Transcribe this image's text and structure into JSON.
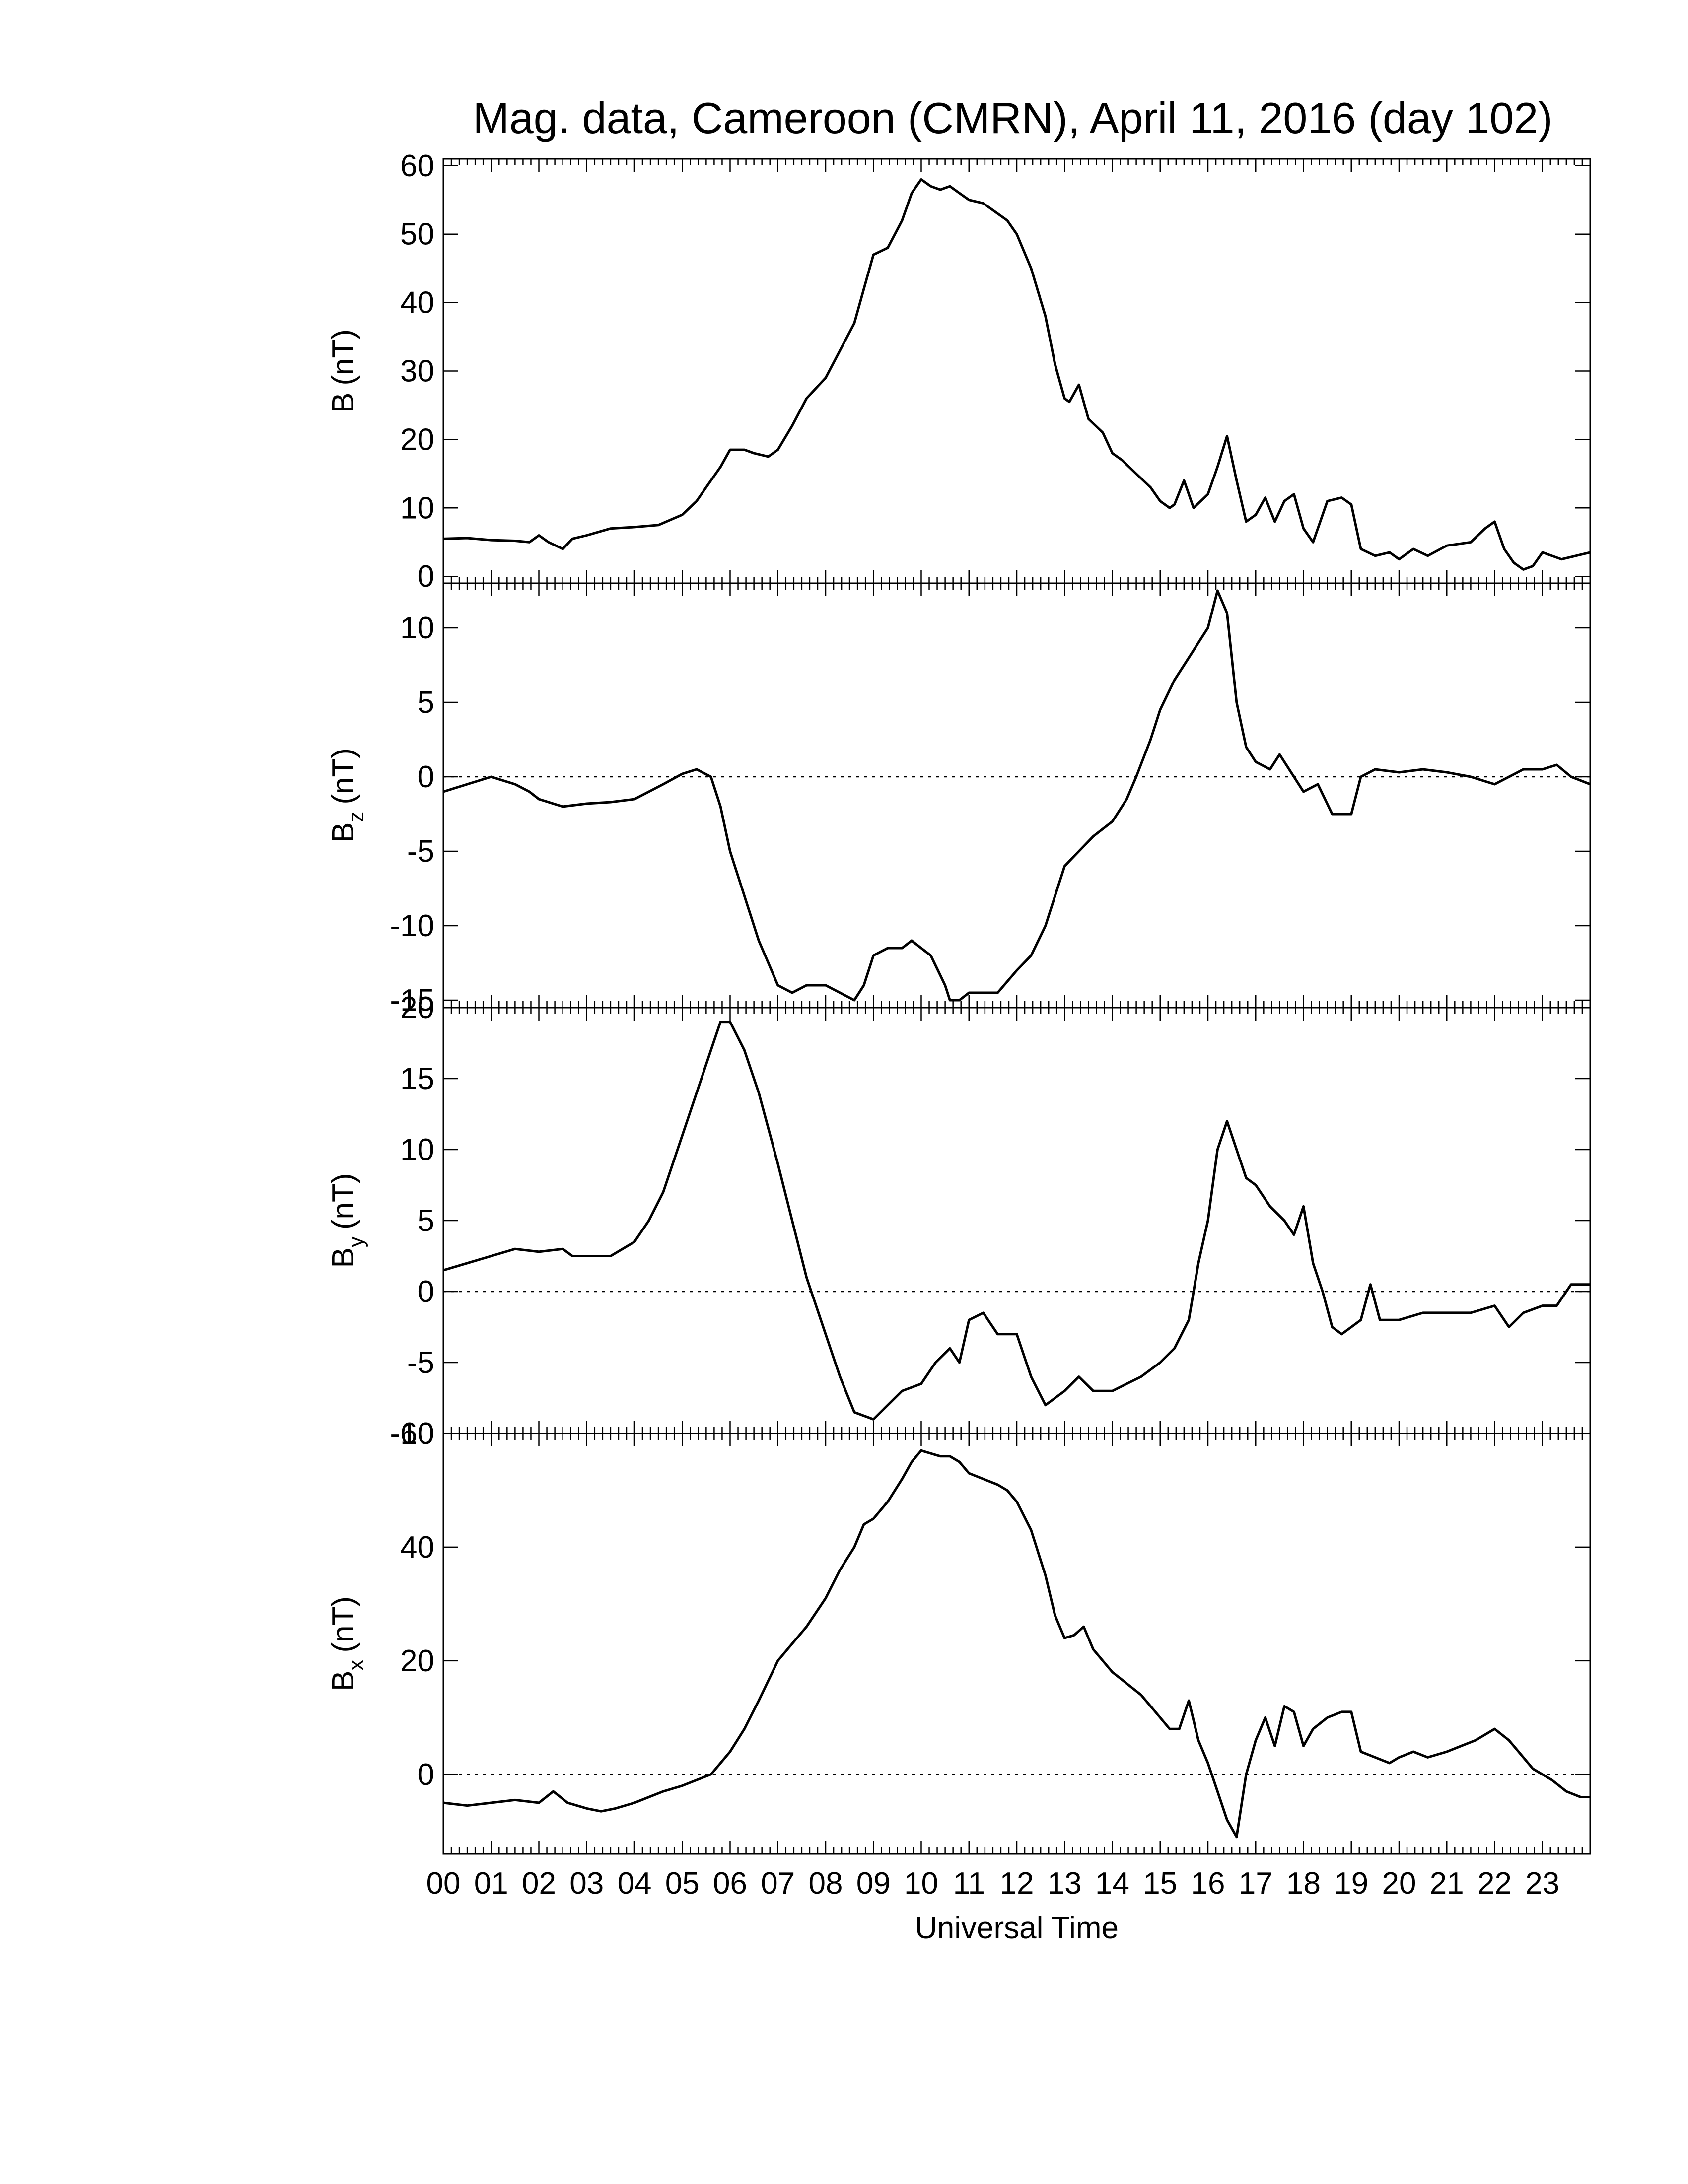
{
  "chart_data": [
    {
      "type": "line",
      "title": "Mag. data, Cameroon (CMRN), April 11, 2016 (day 102)",
      "ylabel": "B (nT)",
      "ylabel_main": "B",
      "ylabel_sub": "",
      "ylabel_unit": "(nT)",
      "xlabel": "",
      "xlim": [
        0,
        24
      ],
      "ylim": [
        -1,
        61
      ],
      "yticks": [
        0,
        10,
        20,
        30,
        40,
        50,
        60
      ],
      "zero_line": false,
      "series": [
        {
          "x": [
            0,
            0.5,
            1,
            1.5,
            1.8,
            2.0,
            2.2,
            2.5,
            2.7,
            3.0,
            3.5,
            4.0,
            4.5,
            5.0,
            5.3,
            5.6,
            5.8,
            6.0,
            6.3,
            6.5,
            6.8,
            7.0,
            7.3,
            7.6,
            8.0,
            8.3,
            8.6,
            8.8,
            9.0,
            9.3,
            9.6,
            9.8,
            10.0,
            10.2,
            10.4,
            10.6,
            10.8,
            11.0,
            11.3,
            11.6,
            11.8,
            12.0,
            12.3,
            12.6,
            12.8,
            13.0,
            13.1,
            13.3,
            13.5,
            13.8,
            14.0,
            14.2,
            14.5,
            14.8,
            15.0,
            15.2,
            15.3,
            15.5,
            15.7,
            16.0,
            16.2,
            16.4,
            16.6,
            16.8,
            17.0,
            17.2,
            17.4,
            17.6,
            17.8,
            18.0,
            18.2,
            18.5,
            18.8,
            19.0,
            19.2,
            19.5,
            19.8,
            20.0,
            20.3,
            20.6,
            21.0,
            21.5,
            21.8,
            22.0,
            22.2,
            22.4,
            22.6,
            22.8,
            23.0,
            23.2,
            23.4,
            23.7,
            24.0
          ],
          "values": [
            5.5,
            5.6,
            5.3,
            5.2,
            5.0,
            6.0,
            5.0,
            4.0,
            5.5,
            6.0,
            7.0,
            7.2,
            7.5,
            9.0,
            11.0,
            14.0,
            16.0,
            18.5,
            18.5,
            18.0,
            17.5,
            18.5,
            22.0,
            26.0,
            29.0,
            33.0,
            37.0,
            42.0,
            47.0,
            48.0,
            52.0,
            56.0,
            58.0,
            57.0,
            56.5,
            57.0,
            56.0,
            55.0,
            54.5,
            53.0,
            52.0,
            50.0,
            45.0,
            38.0,
            31.0,
            26.0,
            25.5,
            28.0,
            23.0,
            21.0,
            18.0,
            17.0,
            15.0,
            13.0,
            11.0,
            10.0,
            10.5,
            14.0,
            10.0,
            12.0,
            16.0,
            20.5,
            14.0,
            8.0,
            9.0,
            11.5,
            8.0,
            11.0,
            12.0,
            7.0,
            5.0,
            11.0,
            11.5,
            10.5,
            4.0,
            3.0,
            3.5,
            2.5,
            4.0,
            3.0,
            4.5,
            5.0,
            7.0,
            8.0,
            4.0,
            2.0,
            1.0,
            1.5,
            3.5,
            3.0,
            2.5,
            3.0,
            3.5
          ]
        }
      ]
    },
    {
      "type": "line",
      "title": "",
      "ylabel": "B z (nT)",
      "ylabel_main": "B",
      "ylabel_sub": "z",
      "ylabel_unit": "(nT)",
      "xlabel": "",
      "xlim": [
        0,
        24
      ],
      "ylim": [
        -15.5,
        13
      ],
      "yticks": [
        -15,
        -10,
        -5,
        0,
        5,
        10
      ],
      "zero_line": true,
      "series": [
        {
          "x": [
            0,
            0.5,
            1,
            1.5,
            1.8,
            2.0,
            2.5,
            3.0,
            3.5,
            4.0,
            4.3,
            4.6,
            5.0,
            5.3,
            5.6,
            5.8,
            6.0,
            6.3,
            6.6,
            7.0,
            7.3,
            7.6,
            8.0,
            8.3,
            8.6,
            8.8,
            9.0,
            9.3,
            9.6,
            9.8,
            10.0,
            10.2,
            10.5,
            10.6,
            10.8,
            11.0,
            11.3,
            11.6,
            12.0,
            12.3,
            12.6,
            13.0,
            13.3,
            13.6,
            14.0,
            14.3,
            14.5,
            14.8,
            15.0,
            15.3,
            15.6,
            16.0,
            16.2,
            16.4,
            16.6,
            16.8,
            17.0,
            17.3,
            17.5,
            17.8,
            18.0,
            18.3,
            18.6,
            19.0,
            19.2,
            19.5,
            20.0,
            20.5,
            21.0,
            21.5,
            22.0,
            22.3,
            22.6,
            23.0,
            23.3,
            23.6,
            24.0
          ],
          "values": [
            -1.0,
            -0.5,
            0,
            -0.5,
            -1.0,
            -1.5,
            -2.0,
            -1.8,
            -1.7,
            -1.5,
            -1.0,
            -0.5,
            0.2,
            0.5,
            0,
            -2.0,
            -5.0,
            -8.0,
            -11.0,
            -14.0,
            -14.5,
            -14.0,
            -14.0,
            -14.5,
            -15.0,
            -14.0,
            -12.0,
            -11.5,
            -11.5,
            -11.0,
            -11.5,
            -12.0,
            -14.0,
            -15.0,
            -15.0,
            -14.5,
            -14.5,
            -14.5,
            -13.0,
            -12.0,
            -10.0,
            -6.0,
            -5.0,
            -4.0,
            -3.0,
            -1.5,
            0,
            2.5,
            4.5,
            6.5,
            8.0,
            10.0,
            12.5,
            11.0,
            5.0,
            2.0,
            1.0,
            0.5,
            1.5,
            0,
            -1.0,
            -0.5,
            -2.5,
            -2.5,
            0,
            0.5,
            0.3,
            0.5,
            0.3,
            0,
            -0.5,
            0,
            0.5,
            0.5,
            0.8,
            0,
            -0.5
          ]
        }
      ]
    },
    {
      "type": "line",
      "title": "",
      "ylabel": "B y (nT)",
      "ylabel_main": "B",
      "ylabel_sub": "y",
      "ylabel_unit": "(nT)",
      "xlabel": "",
      "xlim": [
        0,
        24
      ],
      "ylim": [
        -10,
        20
      ],
      "yticks": [
        -10,
        -5,
        0,
        5,
        10,
        15,
        20
      ],
      "zero_line": true,
      "series": [
        {
          "x": [
            0,
            0.5,
            1,
            1.5,
            2.0,
            2.5,
            2.7,
            3.0,
            3.5,
            4.0,
            4.3,
            4.6,
            5.0,
            5.3,
            5.6,
            5.8,
            6.0,
            6.3,
            6.6,
            7.0,
            7.3,
            7.6,
            8.0,
            8.3,
            8.6,
            9.0,
            9.3,
            9.6,
            10.0,
            10.3,
            10.6,
            10.8,
            11.0,
            11.3,
            11.6,
            12.0,
            12.3,
            12.6,
            13.0,
            13.3,
            13.6,
            14.0,
            14.3,
            14.6,
            15.0,
            15.3,
            15.6,
            15.8,
            16.0,
            16.2,
            16.4,
            16.6,
            16.8,
            17.0,
            17.3,
            17.6,
            17.8,
            18.0,
            18.2,
            18.4,
            18.6,
            18.8,
            19.0,
            19.2,
            19.4,
            19.6,
            20.0,
            20.5,
            21.0,
            21.5,
            22.0,
            22.3,
            22.6,
            23.0,
            23.3,
            23.6,
            24.0
          ],
          "values": [
            1.5,
            2.0,
            2.5,
            3.0,
            2.8,
            3.0,
            2.5,
            2.5,
            2.5,
            3.5,
            5.0,
            7.0,
            11.0,
            14.0,
            17.0,
            19.0,
            19.0,
            17.0,
            14.0,
            9.0,
            5.0,
            1.0,
            -3.0,
            -6.0,
            -8.5,
            -9.0,
            -8.0,
            -7.0,
            -6.5,
            -5.0,
            -4.0,
            -5.0,
            -2.0,
            -1.5,
            -3.0,
            -3.0,
            -6.0,
            -8.0,
            -7.0,
            -6.0,
            -7.0,
            -7.0,
            -6.5,
            -6.0,
            -5.0,
            -4.0,
            -2.0,
            2.0,
            5.0,
            10.0,
            12.0,
            10.0,
            8.0,
            7.5,
            6.0,
            5.0,
            4.0,
            6.0,
            2.0,
            0,
            -2.5,
            -3.0,
            -2.5,
            -2.0,
            0.5,
            -2.0,
            -2.0,
            -1.5,
            -1.5,
            -1.5,
            -1.0,
            -2.5,
            -1.5,
            -1.0,
            -1.0,
            0.5,
            0.5
          ]
        }
      ]
    },
    {
      "type": "line",
      "title": "",
      "ylabel": "B x (nT)",
      "ylabel_main": "B",
      "ylabel_sub": "x",
      "ylabel_unit": "(nT)",
      "xlabel": "Universal Time",
      "xlim": [
        0,
        24
      ],
      "ylim": [
        -14,
        60
      ],
      "yticks": [
        0,
        20,
        40,
        60
      ],
      "zero_line": true,
      "xtick_labels": [
        "00",
        "01",
        "02",
        "03",
        "04",
        "05",
        "06",
        "07",
        "08",
        "09",
        "10",
        "11",
        "12",
        "13",
        "14",
        "15",
        "16",
        "17",
        "18",
        "19",
        "20",
        "21",
        "22",
        "23"
      ],
      "series": [
        {
          "x": [
            0,
            0.5,
            1,
            1.5,
            2.0,
            2.3,
            2.6,
            2.8,
            3.0,
            3.3,
            3.6,
            4.0,
            4.3,
            4.6,
            5.0,
            5.3,
            5.6,
            5.8,
            6.0,
            6.3,
            6.6,
            7.0,
            7.3,
            7.6,
            8.0,
            8.3,
            8.6,
            8.8,
            9.0,
            9.3,
            9.6,
            9.8,
            10.0,
            10.2,
            10.4,
            10.6,
            10.8,
            11.0,
            11.3,
            11.6,
            11.8,
            12.0,
            12.3,
            12.6,
            12.8,
            13.0,
            13.2,
            13.4,
            13.6,
            14.0,
            14.3,
            14.6,
            15.0,
            15.2,
            15.4,
            15.6,
            15.8,
            16.0,
            16.2,
            16.4,
            16.6,
            16.8,
            17.0,
            17.2,
            17.4,
            17.6,
            17.8,
            18.0,
            18.2,
            18.5,
            18.8,
            19.0,
            19.2,
            19.5,
            19.8,
            20.0,
            20.3,
            20.6,
            21.0,
            21.3,
            21.6,
            22.0,
            22.3,
            22.6,
            22.8,
            23.0,
            23.2,
            23.5,
            23.8,
            24.0
          ],
          "values": [
            -5.0,
            -5.5,
            -5.0,
            -4.5,
            -5.0,
            -3.0,
            -5.0,
            -5.5,
            -6.0,
            -6.5,
            -6.0,
            -5.0,
            -4.0,
            -3.0,
            -2.0,
            -1.0,
            0,
            2.0,
            4.0,
            8.0,
            13.0,
            20.0,
            23.0,
            26.0,
            31.0,
            36.0,
            40.0,
            44.0,
            45.0,
            48.0,
            52.0,
            55.0,
            57.0,
            56.5,
            56.0,
            56.0,
            55.0,
            53.0,
            52.0,
            51.0,
            50.0,
            48.0,
            43.0,
            35.0,
            28.0,
            24.0,
            24.5,
            26.0,
            22.0,
            18.0,
            16.0,
            14.0,
            10.0,
            8.0,
            8.0,
            13.0,
            6.0,
            2.0,
            -3.0,
            -8.0,
            -11.0,
            0,
            6.0,
            10.0,
            5.0,
            12.0,
            11.0,
            5.0,
            8.0,
            10.0,
            11.0,
            11.0,
            4.0,
            3.0,
            2.0,
            3.0,
            4.0,
            3.0,
            4.0,
            5.0,
            6.0,
            8.0,
            6.0,
            3.0,
            1.0,
            0,
            -1.0,
            -3.0,
            -4.0,
            -4.0
          ]
        }
      ]
    }
  ]
}
